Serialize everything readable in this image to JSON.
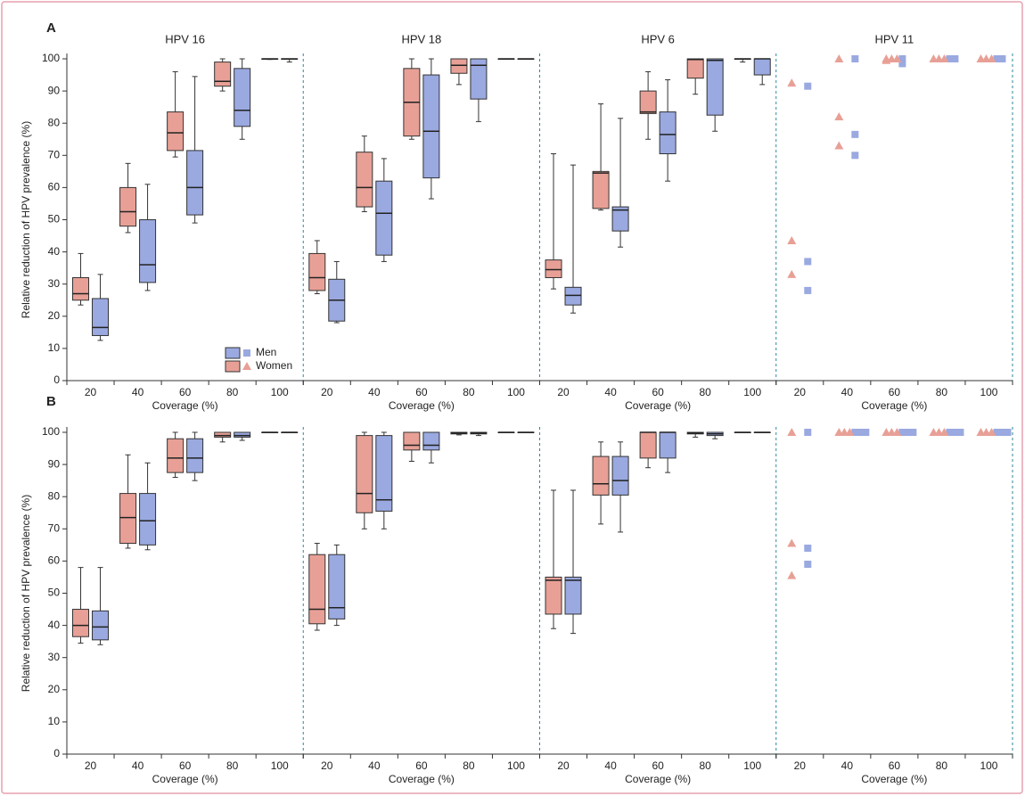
{
  "chart_data": [
    {
      "type": "box",
      "label": "A",
      "ylabel": "Relative reduction of HPV prevalence (%)",
      "xlabel": "Coverage (%)",
      "categories": [
        20,
        40,
        60,
        80,
        100
      ],
      "ylim": [
        0,
        100
      ],
      "yticks": [
        0,
        10,
        20,
        30,
        40,
        50,
        60,
        70,
        80,
        90,
        100
      ],
      "series": [
        {
          "name": "Men",
          "color": "#9aa9e0"
        },
        {
          "name": "Women",
          "color": "#e8a096"
        }
      ],
      "panels": [
        {
          "title": "HPV 16",
          "type": "box",
          "values": [
            [
              [
                12.5,
                14,
                16.5,
                25.5,
                33
              ],
              [
                28,
                30.5,
                36,
                50,
                61
              ],
              [
                49,
                51.5,
                60,
                71.5,
                94.5
              ],
              [
                75,
                79,
                84,
                97,
                100
              ],
              [
                99,
                100,
                100,
                100,
                100
              ]
            ],
            [
              [
                23.5,
                25,
                27,
                32,
                39.5
              ],
              [
                46,
                48,
                52.5,
                60,
                67.5
              ],
              [
                69.5,
                71.5,
                77,
                83.5,
                96
              ],
              [
                90,
                91.5,
                93,
                99,
                100
              ],
              [
                99.8,
                100,
                100,
                100,
                100
              ]
            ]
          ]
        },
        {
          "title": "HPV 18",
          "type": "box",
          "values": [
            [
              [
                18,
                18.5,
                25,
                31.5,
                37
              ],
              [
                37,
                39,
                52,
                62,
                69
              ],
              [
                56.5,
                63,
                77.5,
                95,
                100
              ],
              [
                80.5,
                87.5,
                98,
                100,
                100
              ],
              [
                100,
                100,
                100,
                100,
                100
              ]
            ],
            [
              [
                27,
                28,
                32,
                39.5,
                43.5
              ],
              [
                52.5,
                54,
                60,
                71,
                76
              ],
              [
                75,
                76,
                86.5,
                97,
                100
              ],
              [
                92,
                95.5,
                98,
                100,
                100
              ],
              [
                100,
                100,
                100,
                100,
                100
              ]
            ]
          ]
        },
        {
          "title": "HPV 6",
          "type": "box",
          "values": [
            [
              [
                21,
                23.5,
                26.5,
                29,
                67
              ],
              [
                41.5,
                46.5,
                53,
                54,
                81.5
              ],
              [
                62,
                70.5,
                76.5,
                83.5,
                93.5
              ],
              [
                77.5,
                82.5,
                99.5,
                100,
                100
              ],
              [
                92,
                95,
                100,
                100,
                100
              ]
            ],
            [
              [
                28.5,
                32,
                34.5,
                37.5,
                70.5
              ],
              [
                53,
                53.5,
                64.5,
                65,
                86
              ],
              [
                75,
                83,
                83.5,
                90,
                96
              ],
              [
                89,
                94,
                99.8,
                100,
                100
              ],
              [
                99,
                100,
                100,
                100,
                100
              ]
            ]
          ]
        },
        {
          "title": "HPV 11",
          "type": "scatter",
          "values": [
            [
              [
                91.5,
                37,
                28
              ],
              [
                100,
                76.5,
                70
              ],
              [
                100,
                98.5
              ],
              [
                100,
                100
              ],
              [
                100,
                100
              ]
            ],
            [
              [
                92.5,
                43.5,
                33
              ],
              [
                100,
                82,
                73
              ],
              [
                100,
                100,
                100,
                99.5
              ],
              [
                100,
                100,
                100
              ],
              [
                100,
                100,
                100
              ]
            ]
          ]
        }
      ]
    },
    {
      "type": "box",
      "label": "B",
      "ylabel": "Relative reduction of HPV prevalence (%)",
      "xlabel": "Coverage (%)",
      "categories": [
        20,
        40,
        60,
        80,
        100
      ],
      "ylim": [
        0,
        100
      ],
      "yticks": [
        0,
        10,
        20,
        30,
        40,
        50,
        60,
        70,
        80,
        90,
        100
      ],
      "series": [
        {
          "color": "#9aa9e0"
        },
        {
          "color": "#e8a096"
        }
      ],
      "panels": [
        {
          "type": "box",
          "values": [
            [
              [
                34,
                35.5,
                39.5,
                44.5,
                58
              ],
              [
                63.5,
                65,
                72.5,
                81,
                90.5
              ],
              [
                85,
                87.5,
                92,
                98,
                100
              ],
              [
                97.5,
                98.5,
                99,
                100,
                100
              ],
              [
                100,
                100,
                100,
                100,
                100
              ]
            ],
            [
              [
                34.5,
                36.5,
                40,
                45,
                58
              ],
              [
                64,
                65.5,
                73.5,
                81,
                93
              ],
              [
                86,
                87.5,
                92,
                98,
                100
              ],
              [
                97,
                98.5,
                99,
                100,
                100
              ],
              [
                100,
                100,
                100,
                100,
                100
              ]
            ]
          ]
        },
        {
          "type": "box",
          "values": [
            [
              [
                40,
                42,
                45.5,
                62,
                65
              ],
              [
                70,
                75.5,
                79,
                99,
                100
              ],
              [
                90.5,
                94.5,
                96,
                100,
                100
              ],
              [
                99,
                99.5,
                99.8,
                100,
                100
              ],
              [
                100,
                100,
                100,
                100,
                100
              ]
            ],
            [
              [
                38.5,
                40.5,
                45,
                62,
                65.5
              ],
              [
                70,
                75,
                81,
                99,
                100
              ],
              [
                91,
                94.5,
                96,
                100,
                100
              ],
              [
                99.2,
                99.5,
                99.8,
                100,
                100
              ],
              [
                100,
                100,
                100,
                100,
                100
              ]
            ]
          ]
        },
        {
          "type": "box",
          "values": [
            [
              [
                37.5,
                43.5,
                54,
                55,
                82
              ],
              [
                69,
                80.5,
                85,
                92.5,
                97
              ],
              [
                87.5,
                92,
                100,
                100,
                100
              ],
              [
                98,
                99,
                99.5,
                100,
                100
              ],
              [
                100,
                100,
                100,
                100,
                100
              ]
            ],
            [
              [
                39,
                43.5,
                54,
                55,
                82
              ],
              [
                71.5,
                80.5,
                84,
                92.5,
                97
              ],
              [
                89,
                92,
                100,
                100,
                100
              ],
              [
                98.5,
                99.5,
                99.8,
                100,
                100
              ],
              [
                100,
                100,
                100,
                100,
                100
              ]
            ]
          ]
        },
        {
          "type": "scatter",
          "values": [
            [
              [
                100,
                64,
                59
              ],
              [
                100,
                100,
                100
              ],
              [
                100,
                100,
                100
              ],
              [
                100,
                100,
                100
              ],
              [
                100,
                100,
                100
              ]
            ],
            [
              [
                100,
                65.5,
                55.5
              ],
              [
                100,
                100,
                100
              ],
              [
                100,
                100,
                100
              ],
              [
                100,
                100,
                100
              ],
              [
                100,
                100,
                100
              ]
            ]
          ]
        }
      ]
    }
  ]
}
